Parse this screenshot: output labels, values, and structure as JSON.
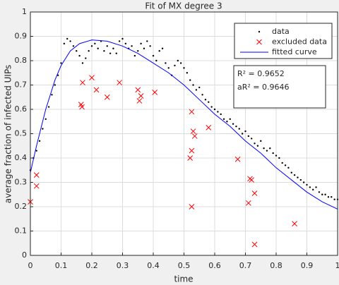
{
  "chart_data": {
    "type": "scatter",
    "title": "Fit of MX degree 3",
    "xlabel": "time",
    "ylabel": "average fraction of infected UIPs",
    "xlim": [
      0,
      1
    ],
    "ylim": [
      0,
      1
    ],
    "xticks": [
      0,
      0.1,
      0.2,
      0.3,
      0.4,
      0.5,
      0.6,
      0.7,
      0.8,
      0.9,
      1
    ],
    "yticks": [
      0,
      0.1,
      0.2,
      0.3,
      0.4,
      0.5,
      0.6,
      0.7,
      0.8,
      0.9,
      1
    ],
    "grid": true,
    "legend": "northeast",
    "annotations": [
      "R² = 0.9652",
      "aR² = 0.9646"
    ],
    "series": [
      {
        "name": "data",
        "color": "#000000",
        "style": "dot",
        "x": [
          0,
          0.01,
          0.02,
          0.03,
          0.04,
          0.05,
          0.06,
          0.07,
          0.08,
          0.09,
          0.1,
          0.11,
          0.12,
          0.13,
          0.14,
          0.15,
          0.16,
          0.17,
          0.18,
          0.19,
          0.2,
          0.21,
          0.22,
          0.23,
          0.24,
          0.25,
          0.26,
          0.27,
          0.28,
          0.29,
          0.3,
          0.31,
          0.32,
          0.33,
          0.34,
          0.35,
          0.36,
          0.37,
          0.38,
          0.39,
          0.4,
          0.41,
          0.42,
          0.43,
          0.44,
          0.45,
          0.46,
          0.47,
          0.48,
          0.49,
          0.5,
          0.51,
          0.52,
          0.53,
          0.54,
          0.55,
          0.56,
          0.57,
          0.58,
          0.59,
          0.6,
          0.61,
          0.62,
          0.63,
          0.64,
          0.65,
          0.66,
          0.67,
          0.68,
          0.69,
          0.7,
          0.71,
          0.72,
          0.73,
          0.74,
          0.75,
          0.76,
          0.77,
          0.78,
          0.79,
          0.8,
          0.81,
          0.82,
          0.83,
          0.84,
          0.85,
          0.86,
          0.87,
          0.88,
          0.89,
          0.9,
          0.91,
          0.92,
          0.93,
          0.94,
          0.95,
          0.96,
          0.97,
          0.98,
          0.99,
          1
        ],
        "values": [
          0.35,
          0.4,
          0.43,
          0.47,
          0.52,
          0.56,
          0.61,
          0.66,
          0.7,
          0.74,
          0.79,
          0.87,
          0.89,
          0.88,
          0.86,
          0.84,
          0.82,
          0.79,
          0.81,
          0.84,
          0.86,
          0.87,
          0.85,
          0.88,
          0.84,
          0.86,
          0.83,
          0.85,
          0.83,
          0.88,
          0.89,
          0.87,
          0.85,
          0.86,
          0.82,
          0.84,
          0.87,
          0.85,
          0.88,
          0.86,
          0.82,
          0.8,
          0.84,
          0.85,
          0.79,
          0.77,
          0.74,
          0.78,
          0.8,
          0.79,
          0.77,
          0.75,
          0.72,
          0.7,
          0.68,
          0.69,
          0.66,
          0.64,
          0.63,
          0.61,
          0.6,
          0.59,
          0.58,
          0.56,
          0.55,
          0.56,
          0.54,
          0.53,
          0.52,
          0.5,
          0.51,
          0.49,
          0.48,
          0.46,
          0.45,
          0.47,
          0.44,
          0.43,
          0.44,
          0.42,
          0.41,
          0.4,
          0.38,
          0.37,
          0.36,
          0.34,
          0.33,
          0.32,
          0.31,
          0.3,
          0.29,
          0.28,
          0.27,
          0.28,
          0.26,
          0.25,
          0.25,
          0.24,
          0.24,
          0.23,
          0.23
        ]
      },
      {
        "name": "excluded data",
        "color": "#ff0000",
        "style": "cross",
        "x": [
          0,
          0.02,
          0.02,
          0.17,
          0.165,
          0.168,
          0.2,
          0.215,
          0.25,
          0.29,
          0.35,
          0.355,
          0.36,
          0.405,
          0.52,
          0.525,
          0.525,
          0.53,
          0.535,
          0.525,
          0.58,
          0.675,
          0.71,
          0.715,
          0.72,
          0.73,
          0.73,
          0.86
        ],
        "values": [
          0.22,
          0.33,
          0.285,
          0.71,
          0.62,
          0.61,
          0.73,
          0.68,
          0.65,
          0.71,
          0.68,
          0.635,
          0.655,
          0.67,
          0.4,
          0.43,
          0.59,
          0.51,
          0.49,
          0.2,
          0.525,
          0.395,
          0.215,
          0.315,
          0.31,
          0.255,
          0.045,
          0.13
        ]
      },
      {
        "name": "fitted curve",
        "color": "#0000ff",
        "style": "line",
        "x": [
          0,
          0.02,
          0.05,
          0.08,
          0.1,
          0.13,
          0.16,
          0.2,
          0.25,
          0.3,
          0.35,
          0.4,
          0.45,
          0.5,
          0.55,
          0.6,
          0.65,
          0.7,
          0.75,
          0.8,
          0.85,
          0.9,
          0.95,
          1
        ],
        "values": [
          0.34,
          0.45,
          0.6,
          0.72,
          0.78,
          0.84,
          0.87,
          0.885,
          0.88,
          0.86,
          0.83,
          0.79,
          0.75,
          0.7,
          0.64,
          0.58,
          0.53,
          0.47,
          0.42,
          0.36,
          0.31,
          0.26,
          0.22,
          0.19
        ]
      }
    ]
  }
}
